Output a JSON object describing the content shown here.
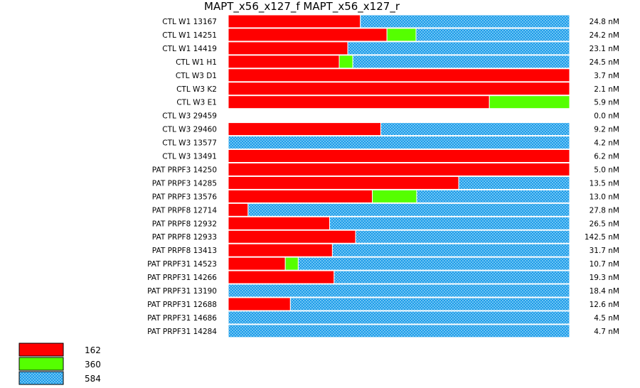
{
  "chart_data": {
    "type": "bar",
    "orientation": "horizontal",
    "stacked": "proportion",
    "title": "MAPT_x56_x127_f  MAPT_x56_x127_r",
    "legend": {
      "placement": "bottom-left",
      "entries": [
        {
          "label": "162",
          "color": "#ff0000",
          "pattern": "solid"
        },
        {
          "label": "360",
          "color": "#55ff00",
          "pattern": "solid"
        },
        {
          "label": "584",
          "color": "#1e9ce8",
          "pattern": "checker"
        }
      ]
    },
    "rows": [
      {
        "label": "CTL W1 13167",
        "conc": "24.8 nM",
        "fractions": [
          0.387,
          0.0,
          0.613
        ]
      },
      {
        "label": "CTL W1 14251",
        "conc": "24.2 nM",
        "fractions": [
          0.465,
          0.085,
          0.45
        ]
      },
      {
        "label": "CTL W1 14419",
        "conc": "23.1 nM",
        "fractions": [
          0.35,
          0.0,
          0.65
        ]
      },
      {
        "label": "CTL W1 H1",
        "conc": "24.5 nM",
        "fractions": [
          0.325,
          0.04,
          0.635
        ]
      },
      {
        "label": "CTL W3 D1",
        "conc": "3.7 nM",
        "fractions": [
          1.0,
          0.0,
          0.0
        ]
      },
      {
        "label": "CTL W3 K2",
        "conc": "2.1 nM",
        "fractions": [
          1.0,
          0.0,
          0.0
        ]
      },
      {
        "label": "CTL W3 E1",
        "conc": "5.9 nM",
        "fractions": [
          0.765,
          0.235,
          0.0
        ]
      },
      {
        "label": "CTL W3 29459",
        "conc": "0.0 nM",
        "fractions": [
          0.0,
          0.0,
          0.0
        ]
      },
      {
        "label": "CTL W3 29460",
        "conc": "9.2 nM",
        "fractions": [
          0.447,
          0.0,
          0.553
        ]
      },
      {
        "label": "CTL W3 13577",
        "conc": "4.2 nM",
        "fractions": [
          0.0,
          0.0,
          1.0
        ]
      },
      {
        "label": "CTL W3 13491",
        "conc": "6.2 nM",
        "fractions": [
          1.0,
          0.0,
          0.0
        ]
      },
      {
        "label": "PAT PRPF3 14250",
        "conc": "5.0 nM",
        "fractions": [
          1.0,
          0.0,
          0.0
        ]
      },
      {
        "label": "PAT PRPF3 14285",
        "conc": "13.5 nM",
        "fractions": [
          0.675,
          0.0,
          0.325
        ]
      },
      {
        "label": "PAT PRPF3 13576",
        "conc": "13.0 nM",
        "fractions": [
          0.422,
          0.13,
          0.448
        ]
      },
      {
        "label": "PAT PRPF8 12714",
        "conc": "27.8 nM",
        "fractions": [
          0.058,
          0.0,
          0.942
        ]
      },
      {
        "label": "PAT PRPF8 12932",
        "conc": "26.5 nM",
        "fractions": [
          0.297,
          0.0,
          0.703
        ]
      },
      {
        "label": "PAT PRPF8 12933",
        "conc": "142.5 nM",
        "fractions": [
          0.373,
          0.0,
          0.627
        ]
      },
      {
        "label": "PAT PRPF8 13413",
        "conc": "31.7 nM",
        "fractions": [
          0.305,
          0.0,
          0.695
        ]
      },
      {
        "label": "PAT PRPF31 14523",
        "conc": "10.7 nM",
        "fractions": [
          0.167,
          0.038,
          0.795
        ]
      },
      {
        "label": "PAT PRPF31 14266",
        "conc": "19.3 nM",
        "fractions": [
          0.31,
          0.0,
          0.69
        ]
      },
      {
        "label": "PAT PRPF31 13190",
        "conc": "18.4 nM",
        "fractions": [
          0.0,
          0.0,
          1.0
        ]
      },
      {
        "label": "PAT PRPF31 12688",
        "conc": "12.6 nM",
        "fractions": [
          0.182,
          0.0,
          0.818
        ]
      },
      {
        "label": "PAT PRPF31 14686",
        "conc": "4.5 nM",
        "fractions": [
          0.0,
          0.0,
          1.0
        ]
      },
      {
        "label": "PAT PRPF31 14284",
        "conc": "4.7 nM",
        "fractions": [
          0.0,
          0.0,
          1.0
        ]
      }
    ]
  }
}
